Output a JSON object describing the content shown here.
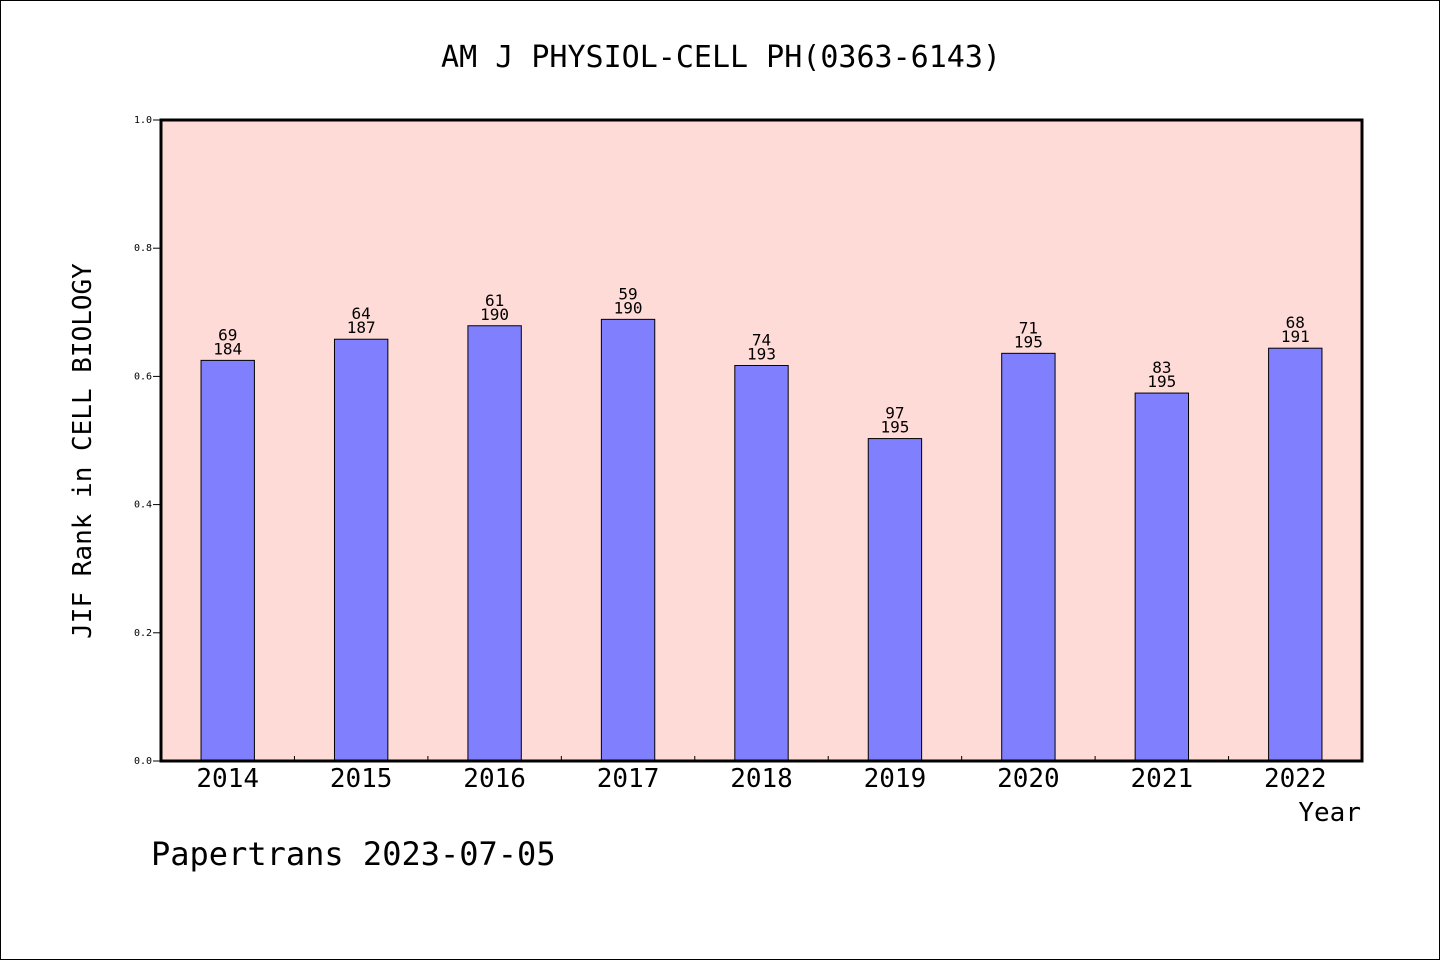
{
  "chart_data": {
    "type": "bar",
    "title": "AM J PHYSIOL-CELL PH(0363-6143)",
    "xlabel": "Year",
    "ylabel": "JIF Rank in CELL BIOLOGY",
    "categories": [
      "2014",
      "2015",
      "2016",
      "2017",
      "2018",
      "2019",
      "2020",
      "2021",
      "2022"
    ],
    "values": [
      0.625,
      0.658,
      0.679,
      0.689,
      0.617,
      0.503,
      0.636,
      0.574,
      0.644
    ],
    "ranks": [
      "69",
      "64",
      "61",
      "59",
      "74",
      "97",
      "71",
      "83",
      "68"
    ],
    "totals": [
      "184",
      "187",
      "190",
      "190",
      "193",
      "195",
      "195",
      "195",
      "191"
    ],
    "ylim": [
      0,
      1.0
    ],
    "yticks": [
      "0.0",
      "0.2",
      "0.4",
      "0.6",
      "0.8",
      "1.0"
    ],
    "grid": false,
    "plot_background": "#ffdbd8",
    "bar_color": "#8080ff"
  },
  "footer": {
    "source_label": "Papertrans 2023-07-05"
  }
}
